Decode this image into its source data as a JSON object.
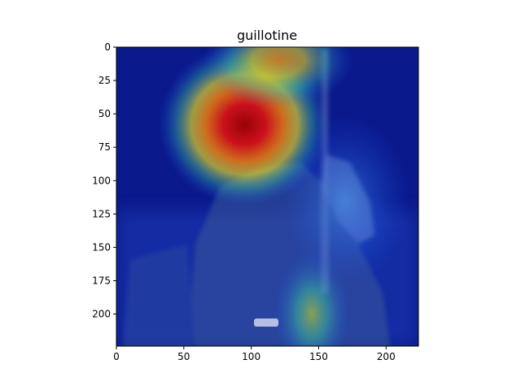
{
  "chart_data": {
    "type": "heatmap",
    "title": "guillotine",
    "xlabel": "",
    "ylabel": "",
    "xlim": [
      0,
      224
    ],
    "ylim": [
      224,
      0
    ],
    "x_ticks": [
      "0",
      "50",
      "100",
      "150",
      "200"
    ],
    "y_ticks": [
      "0",
      "25",
      "50",
      "75",
      "100",
      "125",
      "150",
      "175",
      "200"
    ],
    "grid": false,
    "colormap": "jet",
    "hotspots": [
      {
        "x": 95,
        "y": 58,
        "spread_x": 40,
        "spread_y": 38,
        "intensity": 1.0
      },
      {
        "x": 120,
        "y": 10,
        "spread_x": 35,
        "spread_y": 22,
        "intensity": 0.55
      },
      {
        "x": 145,
        "y": 200,
        "spread_x": 18,
        "spread_y": 30,
        "intensity": 0.4
      },
      {
        "x": 170,
        "y": 115,
        "spread_x": 30,
        "spread_y": 40,
        "intensity": 0.25
      }
    ],
    "axis_color": "#000000",
    "background_color": "#ffffff"
  }
}
